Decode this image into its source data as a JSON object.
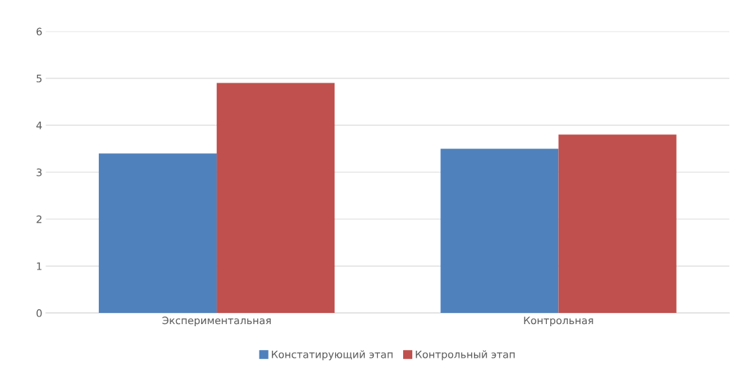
{
  "chart_data": {
    "type": "bar",
    "categories": [
      "Экспериментальная",
      "Контрольная"
    ],
    "series": [
      {
        "name": "Констатирующий этап",
        "color": "#4f81bd",
        "values": [
          3.4,
          3.5
        ]
      },
      {
        "name": "Контрольный этап",
        "color": "#c0504d",
        "values": [
          4.9,
          3.8
        ]
      }
    ],
    "ylim": [
      0,
      6
    ],
    "yticks": [
      0,
      1,
      2,
      3,
      4,
      5,
      6
    ],
    "grid": "y",
    "legend": "bottom"
  }
}
